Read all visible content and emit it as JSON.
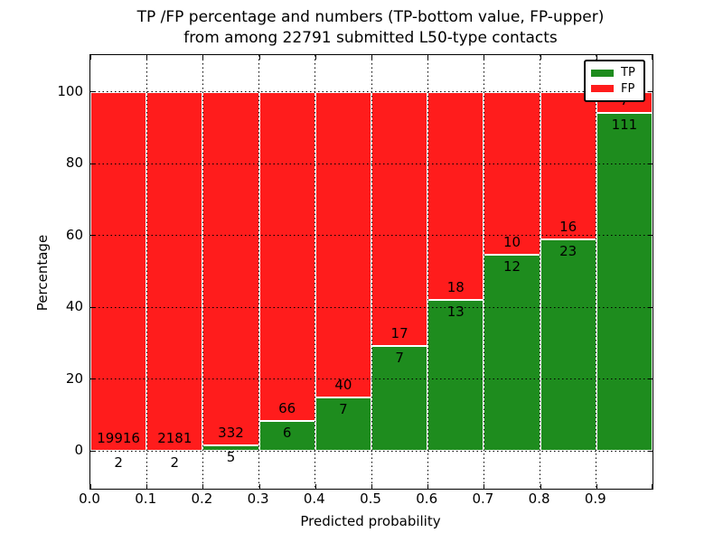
{
  "title": {
    "line1": "TP /FP percentage and numbers (TP-bottom value, FP-upper)",
    "line2": "from among 22791 submitted L50-type contacts"
  },
  "axes": {
    "xlabel": "Predicted probability",
    "ylabel": "Percentage",
    "xtick_labels": [
      "0.0",
      "0.1",
      "0.2",
      "0.3",
      "0.4",
      "0.5",
      "0.6",
      "0.7",
      "0.8",
      "0.9"
    ],
    "ytick_labels": [
      "0",
      "20",
      "40",
      "60",
      "80",
      "100"
    ]
  },
  "legend": {
    "items": [
      {
        "label": "TP",
        "color": "#1e8c1e"
      },
      {
        "label": "FP",
        "color": "#ff1c1c"
      }
    ]
  },
  "colors": {
    "tp": "#1e8c1e",
    "fp": "#ff1c1c",
    "grid": "#000000",
    "frame": "#000000",
    "background": "#ffffff"
  },
  "chart_data": {
    "type": "bar",
    "stacked": true,
    "title": "TP /FP percentage and numbers (TP-bottom value, FP-upper) from among 22791 submitted L50-type contacts",
    "xlabel": "Predicted probability",
    "ylabel": "Percentage",
    "total_contacts": 22791,
    "xlim": [
      0.0,
      1.0
    ],
    "ylim": [
      -10.5,
      110.2
    ],
    "xticks": [
      0.0,
      0.1,
      0.2,
      0.3,
      0.4,
      0.5,
      0.6,
      0.7,
      0.8,
      0.9
    ],
    "yticks": [
      0,
      20,
      40,
      60,
      80,
      100
    ],
    "grid": true,
    "legend_position": "upper right",
    "series_names": [
      "TP",
      "FP"
    ],
    "bins": [
      {
        "x_start": 0.0,
        "x_end": 0.1,
        "tp_count": 2,
        "fp_count": 19916,
        "tp_percent": 0.01,
        "fp_percent": 99.99
      },
      {
        "x_start": 0.1,
        "x_end": 0.2,
        "tp_count": 2,
        "fp_count": 2181,
        "tp_percent": 0.09,
        "fp_percent": 99.91
      },
      {
        "x_start": 0.2,
        "x_end": 0.3,
        "tp_count": 5,
        "fp_count": 332,
        "tp_percent": 1.48,
        "fp_percent": 98.52
      },
      {
        "x_start": 0.3,
        "x_end": 0.4,
        "tp_count": 6,
        "fp_count": 66,
        "tp_percent": 8.33,
        "fp_percent": 91.67
      },
      {
        "x_start": 0.4,
        "x_end": 0.5,
        "tp_count": 7,
        "fp_count": 40,
        "tp_percent": 14.89,
        "fp_percent": 85.11
      },
      {
        "x_start": 0.5,
        "x_end": 0.6,
        "tp_count": 7,
        "fp_count": 17,
        "tp_percent": 29.17,
        "fp_percent": 70.83
      },
      {
        "x_start": 0.6,
        "x_end": 0.7,
        "tp_count": 13,
        "fp_count": 18,
        "tp_percent": 41.94,
        "fp_percent": 58.06
      },
      {
        "x_start": 0.7,
        "x_end": 0.8,
        "tp_count": 12,
        "fp_count": 10,
        "tp_percent": 54.55,
        "fp_percent": 45.45
      },
      {
        "x_start": 0.8,
        "x_end": 0.9,
        "tp_count": 23,
        "fp_count": 16,
        "tp_percent": 58.97,
        "fp_percent": 41.03
      },
      {
        "x_start": 0.9,
        "x_end": 1.0,
        "tp_count": 111,
        "fp_count": 7,
        "tp_percent": 94.07,
        "fp_percent": 5.93
      }
    ]
  }
}
